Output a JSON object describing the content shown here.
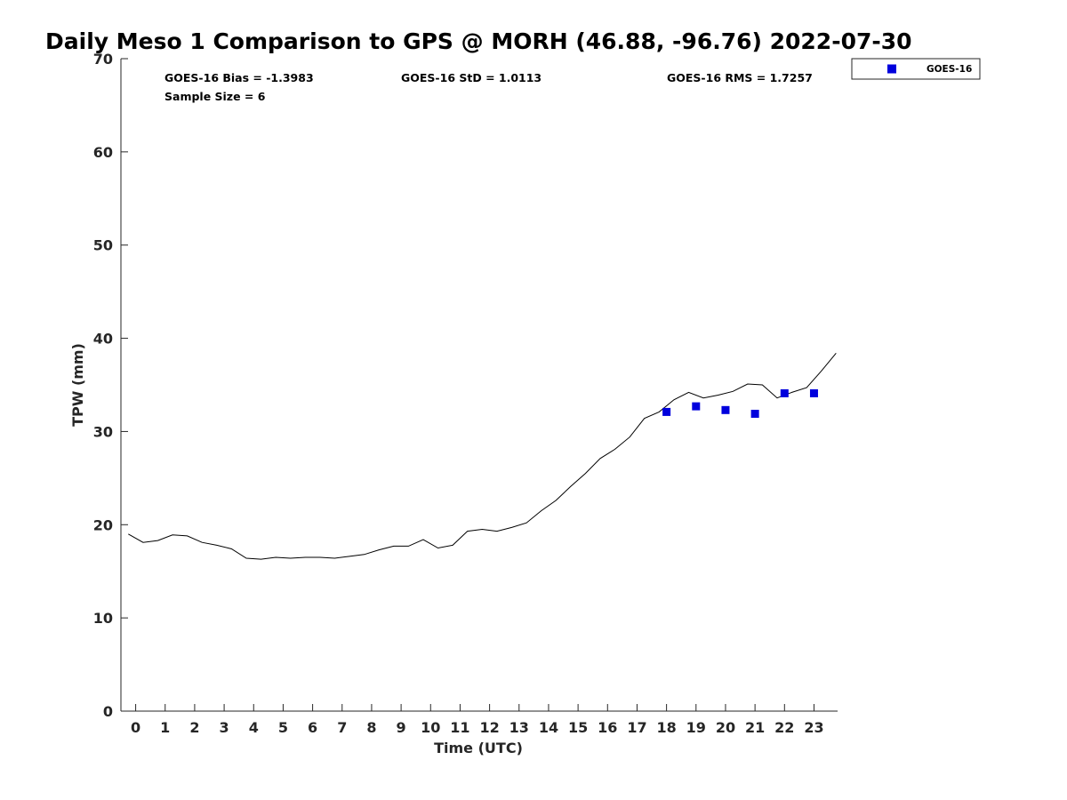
{
  "chart_data": {
    "type": "line",
    "title": "Daily Meso 1 Comparison to GPS @ MORH (46.88, -96.76) 2022-07-30",
    "xlabel": "Time (UTC)",
    "ylabel": "TPW (mm)",
    "xlim": [
      -0.5,
      23.8
    ],
    "ylim": [
      0,
      70
    ],
    "xticks": [
      "0",
      "1",
      "2",
      "3",
      "4",
      "5",
      "6",
      "7",
      "8",
      "9",
      "10",
      "11",
      "12",
      "13",
      "14",
      "15",
      "16",
      "17",
      "18",
      "19",
      "20",
      "21",
      "22",
      "23"
    ],
    "yticks": [
      "0",
      "10",
      "20",
      "30",
      "40",
      "50",
      "60",
      "70"
    ],
    "grid": false,
    "legend_position": "top-right outside",
    "stats": {
      "bias": "GOES-16 Bias = -1.3983",
      "std": "GOES-16 StD = 1.0113",
      "rms": "GOES-16 RMS = 1.7257",
      "sample": "Sample Size = 6"
    },
    "series": [
      {
        "style": "line",
        "color": "#000000",
        "x": [
          -0.25,
          0.25,
          0.75,
          1.25,
          1.75,
          2.25,
          2.75,
          3.25,
          3.75,
          4.25,
          4.75,
          5.25,
          5.75,
          6.25,
          6.75,
          7.25,
          7.75,
          8.25,
          8.75,
          9.25,
          9.75,
          10.25,
          10.75,
          11.25,
          11.75,
          12.25,
          12.75,
          13.25,
          13.75,
          14.25,
          14.75,
          15.25,
          15.75,
          16.25,
          16.75,
          17.25,
          17.75,
          18.25,
          18.75,
          19.25,
          19.75,
          20.25,
          20.75,
          21.25,
          21.75,
          22.25,
          22.75,
          23.25,
          23.75
        ],
        "y": [
          19.0,
          18.1,
          18.3,
          18.9,
          18.8,
          18.1,
          17.8,
          17.4,
          16.4,
          16.3,
          16.5,
          16.4,
          16.5,
          16.5,
          16.4,
          16.6,
          16.8,
          17.3,
          17.7,
          17.7,
          18.4,
          17.5,
          17.8,
          19.3,
          19.5,
          19.3,
          19.7,
          20.2,
          21.5,
          22.6,
          24.1,
          25.5,
          27.1,
          28.1,
          29.4,
          31.4,
          32.1,
          33.4,
          34.2,
          33.6,
          33.9,
          34.3,
          35.1,
          35.0,
          33.6,
          34.2,
          34.7,
          36.5,
          38.4
        ]
      },
      {
        "name": "GOES-16",
        "style": "marker-square",
        "color": "#0000dd",
        "x": [
          18,
          19,
          20,
          21,
          22,
          23
        ],
        "y": [
          32.1,
          32.7,
          32.3,
          31.9,
          34.1,
          34.1
        ]
      }
    ]
  }
}
